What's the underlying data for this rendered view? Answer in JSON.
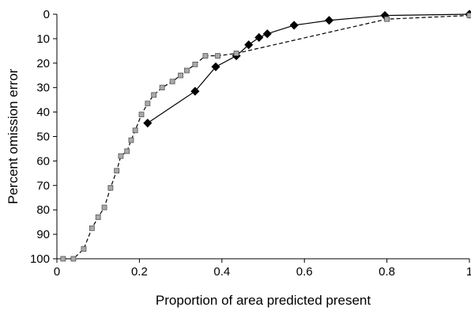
{
  "chart_data": {
    "type": "line",
    "title": "",
    "xlabel": "Proportion of area predicted present",
    "ylabel": "Percent omission error",
    "xlim": [
      0,
      1
    ],
    "ylim": [
      0,
      100
    ],
    "y_axis_inverted": true,
    "x_ticks": [
      0,
      0.2,
      0.4,
      0.6,
      0.8,
      1
    ],
    "x_tick_labels": [
      "0",
      "0.2",
      "0.4",
      "0.6",
      "0.8",
      "1"
    ],
    "y_ticks": [
      0,
      10,
      20,
      30,
      40,
      50,
      60,
      70,
      80,
      90,
      100
    ],
    "y_tick_labels": [
      "0",
      "10",
      "20",
      "30",
      "40",
      "50",
      "60",
      "70",
      "80",
      "90",
      "100"
    ],
    "grid": false,
    "legend": "none",
    "series": [
      {
        "marker": "diamond",
        "marker_color": "#000000",
        "line_style": "solid",
        "line_color": "#000000",
        "x": [
          0.22,
          0.335,
          0.385,
          0.435,
          0.465,
          0.49,
          0.51,
          0.575,
          0.66,
          0.795,
          1.0
        ],
        "y": [
          44.5,
          31.5,
          21.5,
          17,
          12.5,
          9.5,
          8,
          4.5,
          2.5,
          0.5,
          0
        ]
      },
      {
        "marker": "square",
        "marker_color": "#aaaaaa",
        "line_style": "dashed",
        "line_color": "#000000",
        "x": [
          0.015,
          0.04,
          0.065,
          0.085,
          0.1,
          0.115,
          0.13,
          0.145,
          0.155,
          0.17,
          0.18,
          0.19,
          0.205,
          0.22,
          0.235,
          0.255,
          0.28,
          0.3,
          0.315,
          0.335,
          0.36,
          0.39,
          0.435,
          0.8,
          1.0
        ],
        "y": [
          100,
          100,
          96,
          87.5,
          83,
          79,
          71,
          64,
          58,
          56,
          51.5,
          47.5,
          41,
          36.5,
          33,
          30,
          27.5,
          25,
          23,
          20.5,
          17,
          17,
          16,
          2,
          0.5
        ]
      }
    ]
  }
}
